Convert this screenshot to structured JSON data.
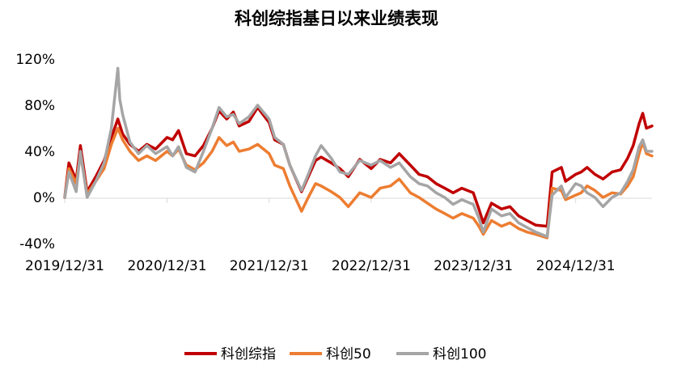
{
  "chart_data": {
    "type": "line",
    "title": "科创综指基日以来业绩表现",
    "xlabel": "",
    "ylabel": "",
    "x_ticks": [
      "2019/12/31",
      "2020/12/31",
      "2021/12/31",
      "2022/12/31",
      "2023/12/31",
      "2024/12/31"
    ],
    "y_ticks": [
      "120%",
      "80%",
      "40%",
      "0%",
      "-40%"
    ],
    "y_tick_values": [
      120,
      80,
      40,
      0,
      -40
    ],
    "ylim": [
      -40,
      120
    ],
    "xlim": [
      "2019/12/31",
      "2025/09/30"
    ],
    "grid": false,
    "legend_position": "bottom",
    "series": [
      {
        "name": "科创综指",
        "color": "#C00000",
        "points": [
          [
            "2019/12/31",
            0
          ],
          [
            "2020/01/15",
            30
          ],
          [
            "2020/02/10",
            15
          ],
          [
            "2020/02/25",
            45
          ],
          [
            "2020/03/20",
            5
          ],
          [
            "2020/04/20",
            18
          ],
          [
            "2020/05/20",
            32
          ],
          [
            "2020/06/15",
            52
          ],
          [
            "2020/07/08",
            68
          ],
          [
            "2020/07/25",
            55
          ],
          [
            "2020/08/20",
            46
          ],
          [
            "2020/09/20",
            40
          ],
          [
            "2020/10/20",
            46
          ],
          [
            "2020/11/20",
            42
          ],
          [
            "2020/12/31",
            52
          ],
          [
            "2021/01/20",
            50
          ],
          [
            "2021/02/10",
            58
          ],
          [
            "2021/03/10",
            38
          ],
          [
            "2021/04/10",
            36
          ],
          [
            "2021/05/10",
            45
          ],
          [
            "2021/06/10",
            60
          ],
          [
            "2021/07/05",
            75
          ],
          [
            "2021/08/01",
            68
          ],
          [
            "2021/08/25",
            74
          ],
          [
            "2021/09/15",
            62
          ],
          [
            "2021/10/20",
            66
          ],
          [
            "2021/11/20",
            78
          ],
          [
            "2021/12/31",
            65
          ],
          [
            "2022/01/20",
            50
          ],
          [
            "2022/02/20",
            46
          ],
          [
            "2022/03/15",
            28
          ],
          [
            "2022/04/26",
            5
          ],
          [
            "2022/05/20",
            18
          ],
          [
            "2022/06/15",
            32
          ],
          [
            "2022/07/05",
            35
          ],
          [
            "2022/08/10",
            30
          ],
          [
            "2022/09/10",
            25
          ],
          [
            "2022/10/10",
            18
          ],
          [
            "2022/11/20",
            33
          ],
          [
            "2022/12/31",
            25
          ],
          [
            "2023/02/01",
            33
          ],
          [
            "2023/03/10",
            30
          ],
          [
            "2023/04/10",
            38
          ],
          [
            "2023/05/20",
            28
          ],
          [
            "2023/06/20",
            20
          ],
          [
            "2023/07/20",
            18
          ],
          [
            "2023/08/20",
            12
          ],
          [
            "2023/09/20",
            8
          ],
          [
            "2023/10/20",
            4
          ],
          [
            "2023/11/20",
            8
          ],
          [
            "2023/12/31",
            4
          ],
          [
            "2024/01/20",
            -10
          ],
          [
            "2024/02/05",
            -22
          ],
          [
            "2024/03/05",
            -5
          ],
          [
            "2024/04/10",
            -10
          ],
          [
            "2024/05/10",
            -8
          ],
          [
            "2024/06/10",
            -16
          ],
          [
            "2024/07/10",
            -20
          ],
          [
            "2024/08/10",
            -24
          ],
          [
            "2024/09/20",
            -25
          ],
          [
            "2024/10/08",
            22
          ],
          [
            "2024/11/10",
            26
          ],
          [
            "2024/11/25",
            14
          ],
          [
            "2024/12/31",
            20
          ],
          [
            "2025/01/20",
            22
          ],
          [
            "2025/02/10",
            26
          ],
          [
            "2025/03/10",
            20
          ],
          [
            "2025/04/08",
            16
          ],
          [
            "2025/05/10",
            22
          ],
          [
            "2025/06/10",
            24
          ],
          [
            "2025/07/05",
            34
          ],
          [
            "2025/07/25",
            45
          ],
          [
            "2025/08/15",
            64
          ],
          [
            "2025/08/28",
            73
          ],
          [
            "2025/09/10",
            60
          ],
          [
            "2025/09/30",
            62
          ]
        ]
      },
      {
        "name": "科创50",
        "color": "#ED7D31",
        "points": [
          [
            "2019/12/31",
            0
          ],
          [
            "2020/01/15",
            25
          ],
          [
            "2020/02/10",
            12
          ],
          [
            "2020/02/25",
            38
          ],
          [
            "2020/03/20",
            3
          ],
          [
            "2020/04/20",
            14
          ],
          [
            "2020/05/20",
            25
          ],
          [
            "2020/06/15",
            46
          ],
          [
            "2020/07/08",
            60
          ],
          [
            "2020/07/25",
            50
          ],
          [
            "2020/08/20",
            40
          ],
          [
            "2020/09/20",
            32
          ],
          [
            "2020/10/20",
            36
          ],
          [
            "2020/11/20",
            32
          ],
          [
            "2020/12/31",
            40
          ],
          [
            "2021/01/20",
            36
          ],
          [
            "2021/02/10",
            42
          ],
          [
            "2021/03/10",
            28
          ],
          [
            "2021/04/10",
            24
          ],
          [
            "2021/05/10",
            30
          ],
          [
            "2021/06/10",
            40
          ],
          [
            "2021/07/05",
            52
          ],
          [
            "2021/08/01",
            45
          ],
          [
            "2021/08/25",
            48
          ],
          [
            "2021/09/15",
            40
          ],
          [
            "2021/10/20",
            42
          ],
          [
            "2021/11/20",
            46
          ],
          [
            "2021/12/31",
            38
          ],
          [
            "2022/01/20",
            28
          ],
          [
            "2022/02/20",
            25
          ],
          [
            "2022/03/15",
            10
          ],
          [
            "2022/04/26",
            -12
          ],
          [
            "2022/05/20",
            0
          ],
          [
            "2022/06/15",
            12
          ],
          [
            "2022/07/05",
            10
          ],
          [
            "2022/08/10",
            5
          ],
          [
            "2022/09/10",
            0
          ],
          [
            "2022/10/10",
            -8
          ],
          [
            "2022/11/20",
            4
          ],
          [
            "2022/12/31",
            0
          ],
          [
            "2023/02/01",
            8
          ],
          [
            "2023/03/10",
            10
          ],
          [
            "2023/04/10",
            16
          ],
          [
            "2023/05/20",
            4
          ],
          [
            "2023/06/20",
            0
          ],
          [
            "2023/07/20",
            -5
          ],
          [
            "2023/08/20",
            -10
          ],
          [
            "2023/09/20",
            -14
          ],
          [
            "2023/10/20",
            -18
          ],
          [
            "2023/11/20",
            -14
          ],
          [
            "2023/12/31",
            -18
          ],
          [
            "2024/01/20",
            -25
          ],
          [
            "2024/02/05",
            -32
          ],
          [
            "2024/03/05",
            -20
          ],
          [
            "2024/04/10",
            -25
          ],
          [
            "2024/05/10",
            -22
          ],
          [
            "2024/06/10",
            -27
          ],
          [
            "2024/07/10",
            -30
          ],
          [
            "2024/08/10",
            -32
          ],
          [
            "2024/09/20",
            -35
          ],
          [
            "2024/10/08",
            8
          ],
          [
            "2024/11/10",
            6
          ],
          [
            "2024/11/25",
            -2
          ],
          [
            "2024/12/31",
            2
          ],
          [
            "2025/01/20",
            4
          ],
          [
            "2025/02/10",
            10
          ],
          [
            "2025/03/10",
            6
          ],
          [
            "2025/04/08",
            0
          ],
          [
            "2025/05/10",
            4
          ],
          [
            "2025/06/10",
            3
          ],
          [
            "2025/07/05",
            10
          ],
          [
            "2025/07/25",
            18
          ],
          [
            "2025/08/15",
            38
          ],
          [
            "2025/08/28",
            48
          ],
          [
            "2025/09/10",
            38
          ],
          [
            "2025/09/30",
            36
          ]
        ]
      },
      {
        "name": "科创100",
        "color": "#A5A5A5",
        "points": [
          [
            "2019/12/31",
            0
          ],
          [
            "2020/01/15",
            22
          ],
          [
            "2020/02/10",
            5
          ],
          [
            "2020/02/25",
            40
          ],
          [
            "2020/03/20",
            0
          ],
          [
            "2020/04/20",
            14
          ],
          [
            "2020/05/20",
            30
          ],
          [
            "2020/06/15",
            60
          ],
          [
            "2020/07/08",
            112
          ],
          [
            "2020/07/15",
            85
          ],
          [
            "2020/07/25",
            72
          ],
          [
            "2020/08/20",
            48
          ],
          [
            "2020/09/20",
            38
          ],
          [
            "2020/10/20",
            45
          ],
          [
            "2020/11/20",
            38
          ],
          [
            "2020/12/31",
            44
          ],
          [
            "2021/01/20",
            36
          ],
          [
            "2021/02/10",
            44
          ],
          [
            "2021/03/10",
            26
          ],
          [
            "2021/04/10",
            22
          ],
          [
            "2021/05/10",
            40
          ],
          [
            "2021/06/10",
            60
          ],
          [
            "2021/07/05",
            78
          ],
          [
            "2021/08/01",
            70
          ],
          [
            "2021/08/25",
            72
          ],
          [
            "2021/09/15",
            64
          ],
          [
            "2021/10/20",
            70
          ],
          [
            "2021/11/20",
            80
          ],
          [
            "2021/12/31",
            68
          ],
          [
            "2022/01/20",
            52
          ],
          [
            "2022/02/20",
            46
          ],
          [
            "2022/03/15",
            28
          ],
          [
            "2022/04/26",
            6
          ],
          [
            "2022/05/20",
            20
          ],
          [
            "2022/06/15",
            36
          ],
          [
            "2022/07/05",
            45
          ],
          [
            "2022/08/10",
            34
          ],
          [
            "2022/09/10",
            22
          ],
          [
            "2022/10/10",
            20
          ],
          [
            "2022/11/20",
            32
          ],
          [
            "2022/12/31",
            28
          ],
          [
            "2023/02/01",
            32
          ],
          [
            "2023/03/10",
            26
          ],
          [
            "2023/04/10",
            30
          ],
          [
            "2023/05/20",
            18
          ],
          [
            "2023/06/20",
            12
          ],
          [
            "2023/07/20",
            10
          ],
          [
            "2023/08/20",
            4
          ],
          [
            "2023/09/20",
            0
          ],
          [
            "2023/10/20",
            -6
          ],
          [
            "2023/11/20",
            -2
          ],
          [
            "2023/12/31",
            -6
          ],
          [
            "2024/01/20",
            -18
          ],
          [
            "2024/02/05",
            -30
          ],
          [
            "2024/03/05",
            -10
          ],
          [
            "2024/04/10",
            -16
          ],
          [
            "2024/05/10",
            -14
          ],
          [
            "2024/06/10",
            -22
          ],
          [
            "2024/07/10",
            -26
          ],
          [
            "2024/08/10",
            -30
          ],
          [
            "2024/09/20",
            -34
          ],
          [
            "2024/10/08",
            2
          ],
          [
            "2024/11/10",
            10
          ],
          [
            "2024/11/25",
            0
          ],
          [
            "2024/12/31",
            12
          ],
          [
            "2025/01/20",
            10
          ],
          [
            "2025/02/10",
            4
          ],
          [
            "2025/03/10",
            0
          ],
          [
            "2025/04/08",
            -8
          ],
          [
            "2025/05/10",
            0
          ],
          [
            "2025/06/10",
            4
          ],
          [
            "2025/07/05",
            14
          ],
          [
            "2025/07/25",
            24
          ],
          [
            "2025/08/15",
            44
          ],
          [
            "2025/08/28",
            50
          ],
          [
            "2025/09/10",
            40
          ],
          [
            "2025/09/30",
            40
          ]
        ]
      }
    ]
  }
}
